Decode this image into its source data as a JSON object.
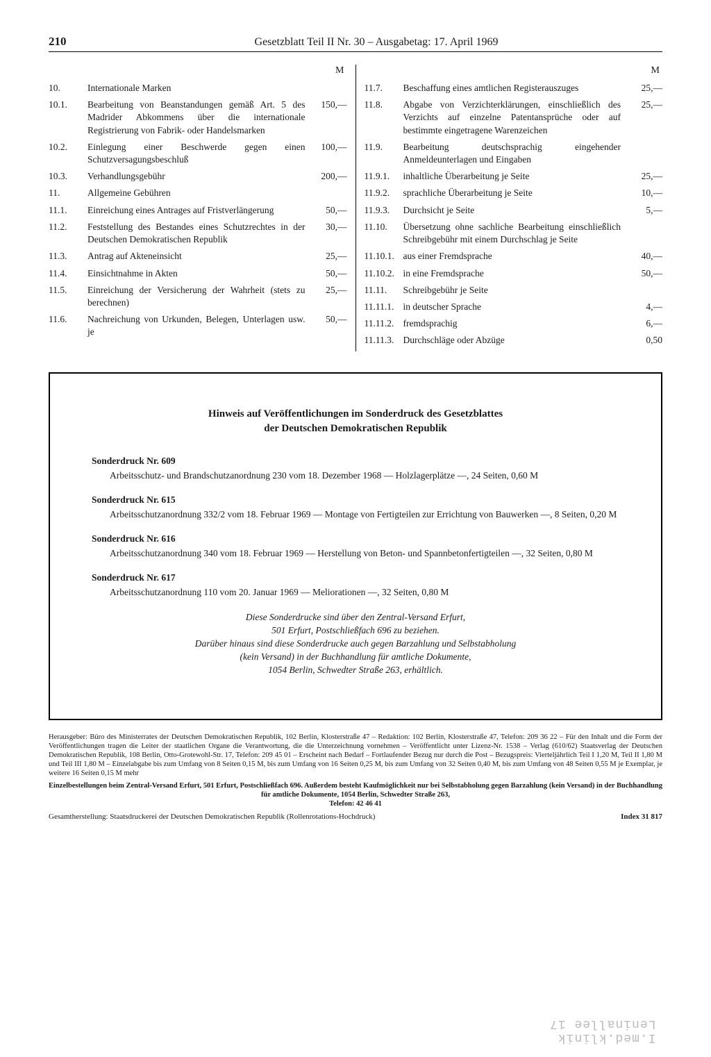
{
  "header": {
    "page_number": "210",
    "title": "Gesetzblatt Teil II Nr. 30 – Ausgabetag: 17. April 1969"
  },
  "currency_label": "M",
  "left_column": [
    {
      "num": "10.",
      "desc": "Internationale Marken",
      "amt": ""
    },
    {
      "num": "10.1.",
      "desc": "Bearbeitung von Beanstandungen gemäß Art. 5 des Madrider Abkommens über die internationale Registrierung von Fabrik- oder Handelsmarken",
      "amt": "150,—"
    },
    {
      "num": "10.2.",
      "desc": "Einlegung einer Beschwerde gegen einen Schutzversagungsbeschluß",
      "amt": "100,—"
    },
    {
      "num": "10.3.",
      "desc": "Verhandlungsgebühr",
      "amt": "200,—"
    },
    {
      "num": "11.",
      "desc": "Allgemeine Gebühren",
      "amt": ""
    },
    {
      "num": "11.1.",
      "desc": "Einreichung eines Antrages auf Fristverlängerung",
      "amt": "50,—"
    },
    {
      "num": "11.2.",
      "desc": "Feststellung des Bestandes eines Schutzrechtes in der Deutschen Demokratischen Republik",
      "amt": "30,—"
    },
    {
      "num": "11.3.",
      "desc": "Antrag auf Akteneinsicht",
      "amt": "25,—"
    },
    {
      "num": "11.4.",
      "desc": "Einsichtnahme in Akten",
      "amt": "50,—"
    },
    {
      "num": "11.5.",
      "desc": "Einreichung der Versicherung der Wahrheit (stets zu berechnen)",
      "amt": "25,—"
    },
    {
      "num": "11.6.",
      "desc": "Nachreichung von Urkunden, Belegen, Unterlagen usw. je",
      "amt": "50,—"
    }
  ],
  "right_column": [
    {
      "num": "11.7.",
      "desc": "Beschaffung eines amtlichen Registerauszuges",
      "amt": "25,—"
    },
    {
      "num": "11.8.",
      "desc": "Abgabe von Verzichterklärungen, einschließlich des Verzichts auf einzelne Patentansprüche oder auf bestimmte eingetragene Warenzeichen",
      "amt": "25,—"
    },
    {
      "num": "11.9.",
      "desc": "Bearbeitung deutschsprachig eingehender Anmeldeunterlagen und Eingaben",
      "amt": ""
    },
    {
      "num": "11.9.1.",
      "desc": "inhaltliche Überarbeitung je Seite",
      "amt": "25,—"
    },
    {
      "num": "11.9.2.",
      "desc": "sprachliche Überarbeitung je Seite",
      "amt": "10,—"
    },
    {
      "num": "11.9.3.",
      "desc": "Durchsicht je Seite",
      "amt": "5,—"
    },
    {
      "num": "11.10.",
      "desc": "Übersetzung ohne sachliche Bearbeitung einschließlich Schreibgebühr mit einem Durchschlag je Seite",
      "amt": ""
    },
    {
      "num": "11.10.1.",
      "desc": "aus einer Fremdsprache",
      "amt": "40,—"
    },
    {
      "num": "11.10.2.",
      "desc": "in eine Fremdsprache",
      "amt": "50,—"
    },
    {
      "num": "11.11.",
      "desc": "Schreibgebühr je Seite",
      "amt": ""
    },
    {
      "num": "11.11.1.",
      "desc": "in deutscher Sprache",
      "amt": "4,—"
    },
    {
      "num": "11.11.2.",
      "desc": "fremdsprachig",
      "amt": "6,—"
    },
    {
      "num": "11.11.3.",
      "desc": "Durchschläge oder Abzüge",
      "amt": "0,50"
    }
  ],
  "notice": {
    "title": "Hinweis auf Veröffentlichungen im Sonderdruck des Gesetzblattes",
    "subtitle": "der Deutschen Demokratischen Republik",
    "items": [
      {
        "heading": "Sonderdruck Nr. 609",
        "text": "Arbeitsschutz- und Brandschutzanordnung 230 vom 18. Dezember 1968 — Holzlagerplätze —, 24 Seiten, 0,60 M"
      },
      {
        "heading": "Sonderdruck Nr. 615",
        "text": "Arbeitsschutzanordnung 332/2 vom 18. Februar 1969 — Montage von Fertigteilen zur Errichtung von Bauwerken —, 8 Seiten, 0,20 M"
      },
      {
        "heading": "Sonderdruck Nr. 616",
        "text": "Arbeitsschutzanordnung 340 vom 18. Februar 1969 — Herstellung von Beton- und Spannbetonfertigteilen —, 32 Seiten, 0,80 M"
      },
      {
        "heading": "Sonderdruck Nr. 617",
        "text": "Arbeitsschutzanordnung 110 vom 20. Januar 1969 — Meliorationen —, 32 Seiten, 0,80 M"
      }
    ],
    "italic1": "Diese Sonderdrucke sind über den Zentral-Versand Erfurt,",
    "italic2": "501 Erfurt, Postschließfach 696 zu beziehen.",
    "italic3": "Darüber hinaus sind diese Sonderdrucke auch gegen Barzahlung und Selbstabholung",
    "italic4": "(kein Versand) in der Buchhandlung für amtliche Dokumente,",
    "italic5": "1054 Berlin, Schwedter Straße 263, erhältlich."
  },
  "imprint": {
    "block": "Herausgeber: Büro des Ministerrates der Deutschen Demokratischen Republik, 102 Berlin, Klosterstraße 47 – Redaktion: 102 Berlin, Klosterstraße 47, Telefon: 209 36 22 – Für den Inhalt und die Form der Veröffentlichungen tragen die Leiter der staatlichen Organe die Verantwortung, die die Unterzeichnung vornehmen – Veröffentlicht unter Lizenz-Nr. 1538 – Verlag (610/62) Staatsverlag der Deutschen Demokratischen Republik, 108 Berlin, Otto-Grotewohl-Str. 17, Telefon: 209 45 01 – Erscheint nach Bedarf – Fortlaufender Bezug nur durch die Post – Bezugspreis: Vierteljährlich Teil I 1,20 M, Teil II 1,80 M und Teil III 1,80 M – Einzelabgabe bis zum Umfang von 8 Seiten 0,15 M, bis zum Umfang von 16 Seiten 0,25 M, bis zum Umfang von 32 Seiten 0,40 M, bis zum Umfang von 48 Seiten 0,55 M je Exemplar, je weitere 16 Seiten 0,15 M mehr",
    "bold1": "Einzelbestellungen beim Zentral-Versand Erfurt, 501 Erfurt, Postschließfach 696. Außerdem besteht Kaufmöglichkeit nur bei Selbstabholung gegen Barzahlung (kein Versand) in der Buchhandlung für amtliche Dokumente, 1054 Berlin, Schwedter Straße 263,",
    "bold2": "Telefon: 42 46 41",
    "final_left": "Gesamtherstellung: Staatsdruckerei der Deutschen Demokratischen Republik (Rollenrotations-Hochdruck)",
    "final_right": "Index 31 817"
  },
  "ghost_text": "I.med.klinik\nLeninallee 17"
}
